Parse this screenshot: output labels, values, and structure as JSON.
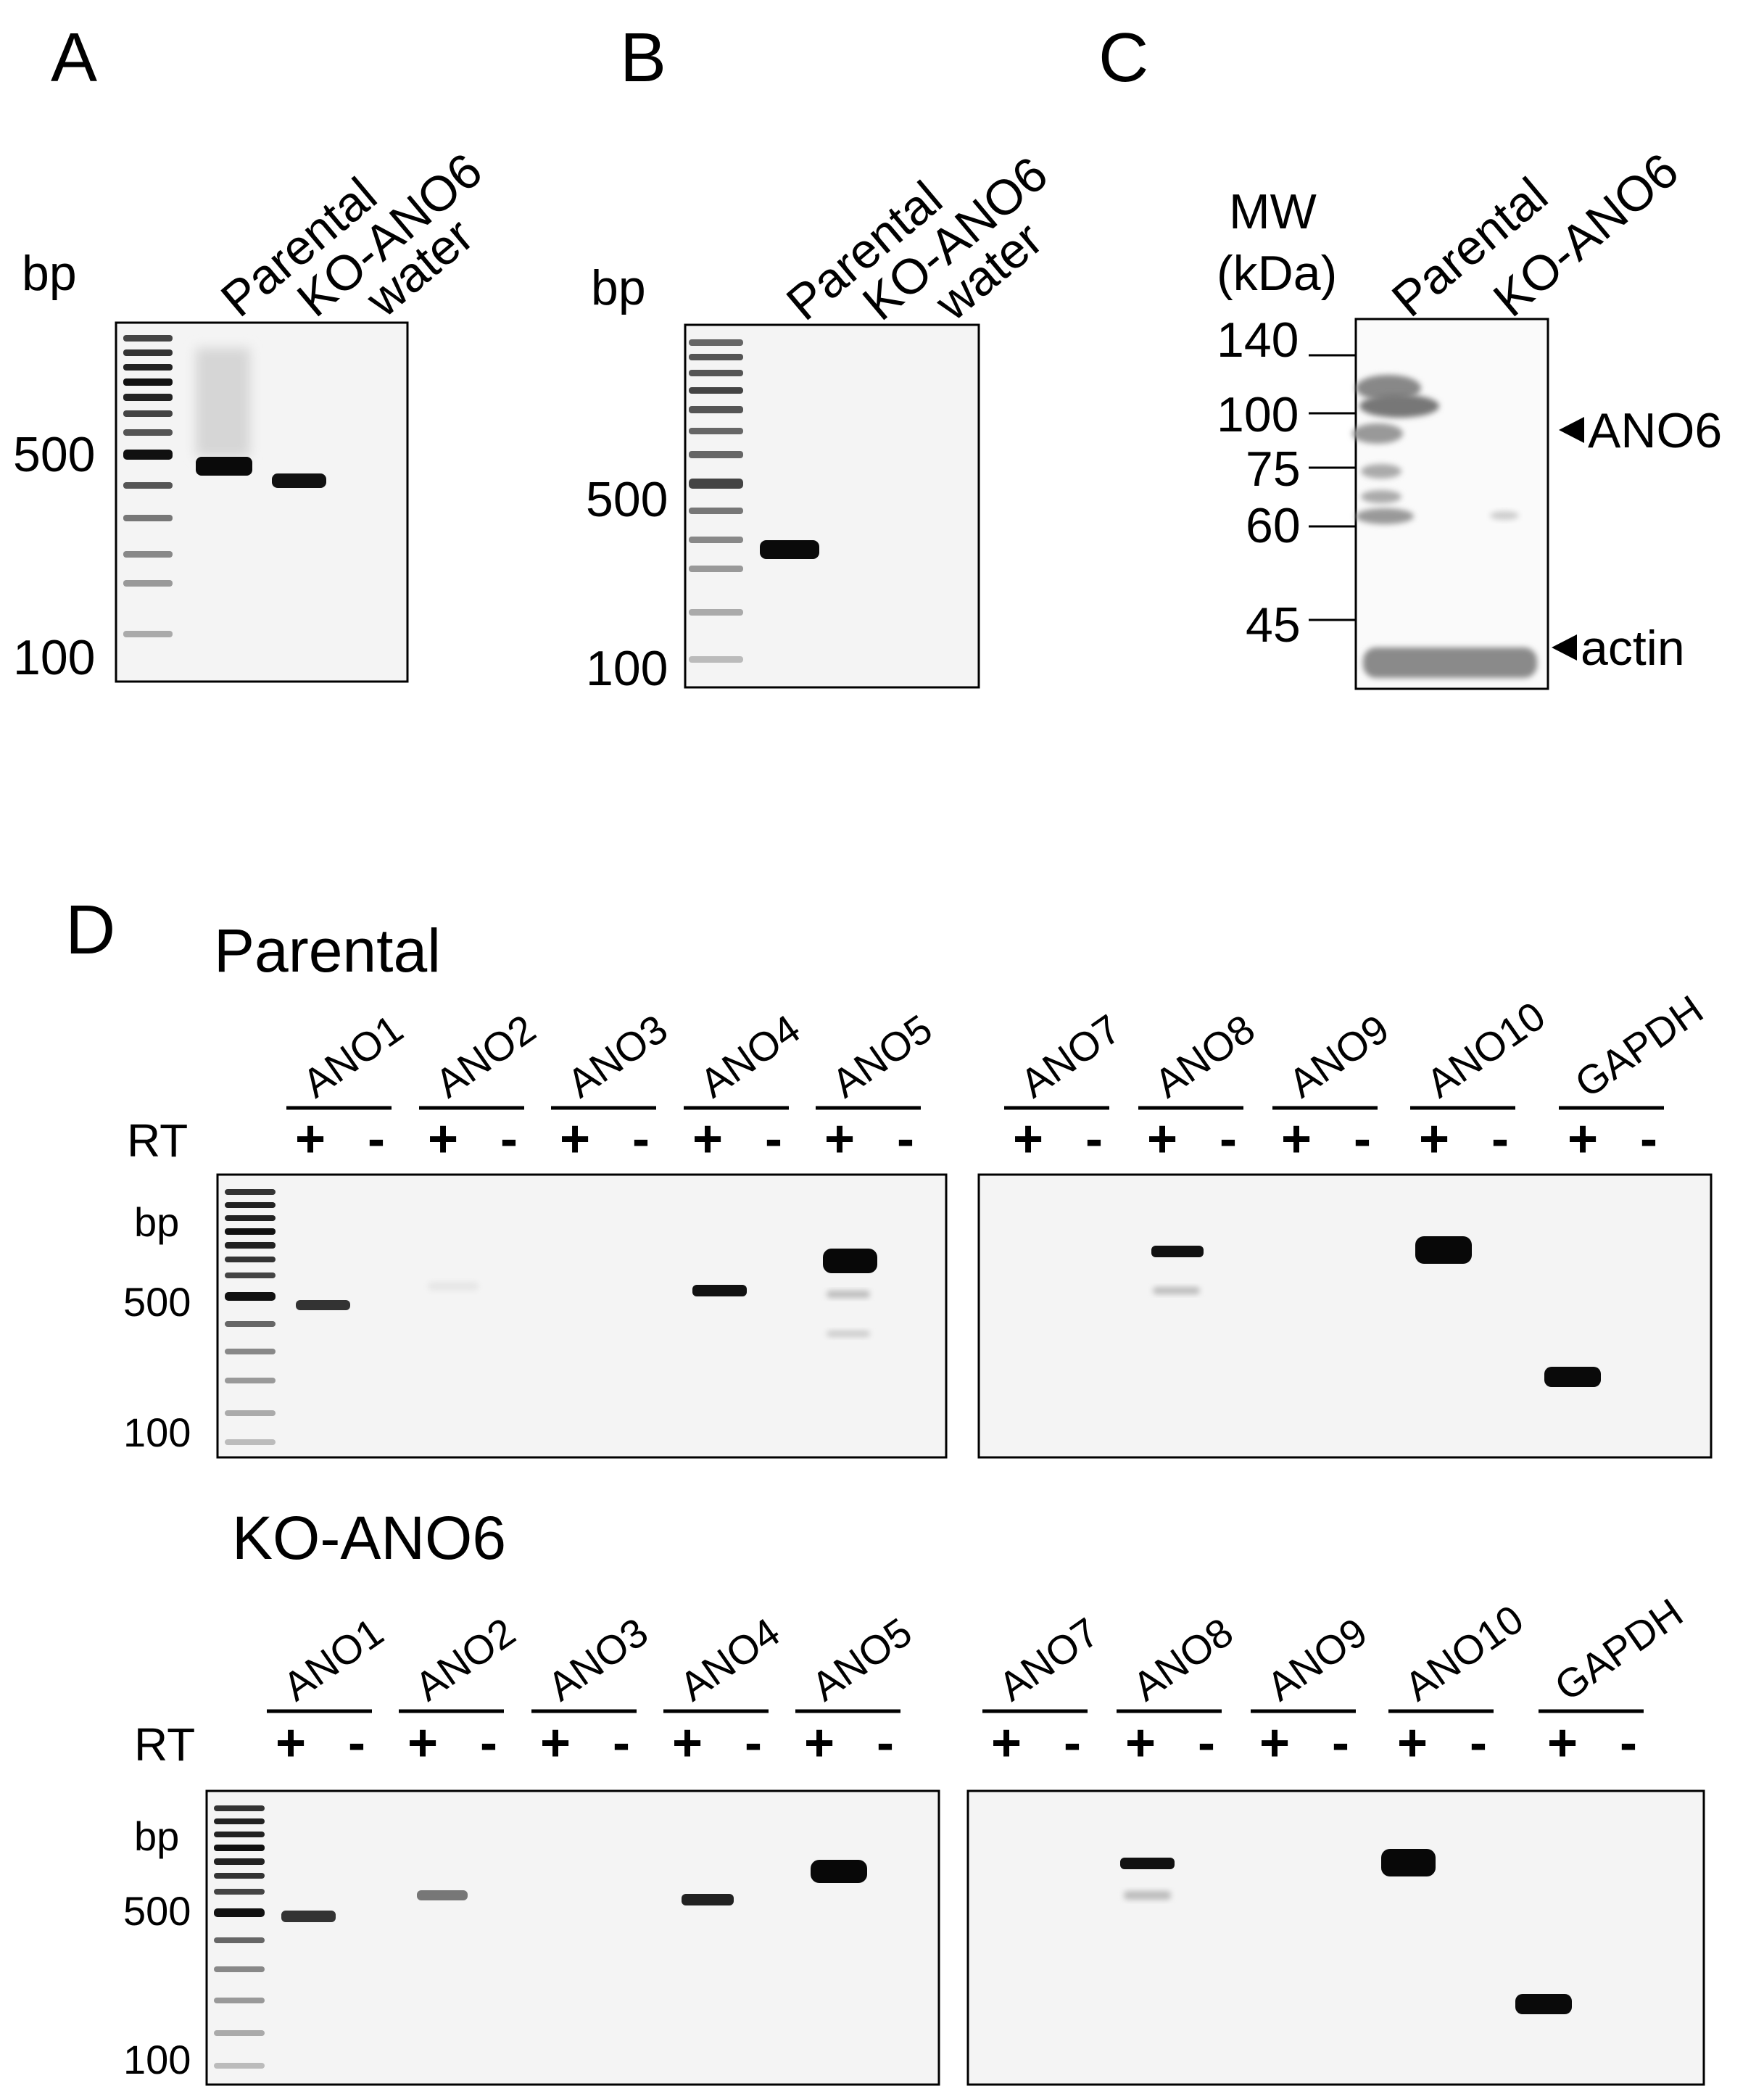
{
  "panels": {
    "A": {
      "letter": "A",
      "unit": "bp",
      "lanes": [
        "Parental",
        "KO-ANO6",
        "water"
      ],
      "markers": [
        "500",
        "100"
      ]
    },
    "B": {
      "letter": "B",
      "unit": "bp",
      "lanes": [
        "Parental",
        "KO-ANO6",
        "water"
      ],
      "markers": [
        "500",
        "100"
      ]
    },
    "C": {
      "letter": "C",
      "mw_label": "MW",
      "kda_label": "(kDa)",
      "lanes": [
        "Parental",
        "KO-ANO6"
      ],
      "markers": [
        "140",
        "100",
        "75",
        "60",
        "45"
      ],
      "arrows": [
        "ANO6",
        "actin"
      ]
    },
    "D": {
      "letter": "D",
      "rt_label": "RT",
      "unit": "bp",
      "plus": "+",
      "minus": "-",
      "markers": [
        "500",
        "100"
      ],
      "groups_left": [
        "ANO1",
        "ANO2",
        "ANO3",
        "ANO4",
        "ANO5"
      ],
      "groups_right": [
        "ANO7",
        "ANO8",
        "ANO9",
        "ANO10",
        "GAPDH"
      ],
      "rows": [
        "Parental",
        "KO-ANO6"
      ]
    }
  }
}
